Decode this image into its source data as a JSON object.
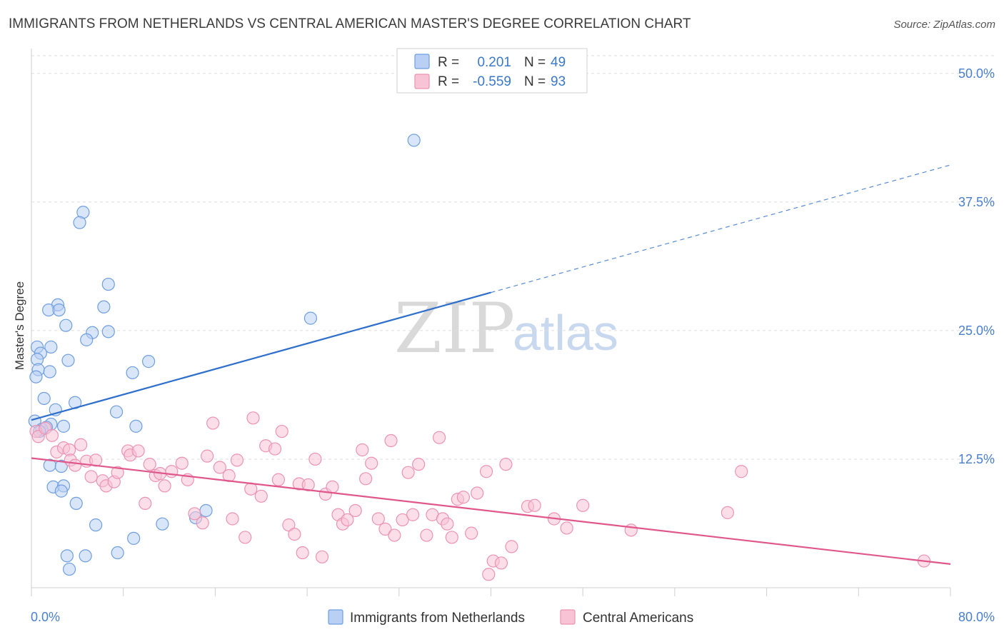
{
  "chart_data": {
    "type": "scatter",
    "title": "IMMIGRANTS FROM NETHERLANDS VS CENTRAL AMERICAN MASTER'S DEGREE CORRELATION CHART",
    "source": "Source: ZipAtlas.com",
    "ylabel": "Master's Degree",
    "xlim": [
      0,
      80
    ],
    "ylim": [
      0,
      52
    ],
    "x_tick_labels": [
      "0.0%",
      "80.0%"
    ],
    "y_ticks": [
      12.5,
      25.0,
      37.5,
      50.0
    ],
    "y_tick_labels": [
      "12.5%",
      "25.0%",
      "37.5%",
      "50.0%"
    ],
    "grid": true,
    "legend_position": "top-center",
    "watermark": {
      "zip": "ZIP",
      "atlas": "atlas"
    },
    "stats_legend": {
      "r_label": "R =",
      "n_label": "N =",
      "rows": [
        {
          "r": "0.201",
          "n": "49"
        },
        {
          "r": "-0.559",
          "n": "93"
        }
      ]
    },
    "series": [
      {
        "name": "Immigrants from Netherlands",
        "color": "#6f9fe0",
        "fill": "#b9cff3",
        "line_color": "#2f6fcc",
        "trend": {
          "x0": 0,
          "y0": 16.3,
          "x1": 40,
          "y1": 28.7,
          "x_end_dashed": 80,
          "y_end_dashed": 41.1
        },
        "points": [
          [
            33.3,
            43.5
          ],
          [
            4.5,
            36.5
          ],
          [
            4.2,
            35.5
          ],
          [
            6.7,
            29.5
          ],
          [
            2.3,
            27.5
          ],
          [
            1.5,
            27.0
          ],
          [
            2.4,
            27.0
          ],
          [
            6.3,
            27.3
          ],
          [
            3.0,
            25.5
          ],
          [
            5.3,
            24.8
          ],
          [
            6.7,
            24.9
          ],
          [
            4.8,
            24.1
          ],
          [
            24.3,
            26.2
          ],
          [
            0.5,
            23.4
          ],
          [
            1.7,
            23.4
          ],
          [
            0.8,
            22.8
          ],
          [
            3.2,
            22.1
          ],
          [
            10.2,
            22.0
          ],
          [
            0.5,
            22.2
          ],
          [
            0.6,
            21.2
          ],
          [
            1.6,
            21.0
          ],
          [
            0.4,
            20.5
          ],
          [
            8.8,
            20.9
          ],
          [
            1.1,
            18.4
          ],
          [
            3.8,
            18.0
          ],
          [
            2.1,
            17.3
          ],
          [
            7.4,
            17.1
          ],
          [
            0.3,
            16.2
          ],
          [
            1.7,
            15.9
          ],
          [
            2.8,
            15.7
          ],
          [
            0.9,
            15.4
          ],
          [
            9.1,
            15.7
          ],
          [
            1.3,
            15.6
          ],
          [
            0.7,
            15.2
          ],
          [
            1.6,
            11.9
          ],
          [
            2.6,
            11.8
          ],
          [
            1.9,
            9.8
          ],
          [
            2.8,
            9.9
          ],
          [
            2.6,
            9.4
          ],
          [
            3.9,
            8.2
          ],
          [
            15.2,
            7.5
          ],
          [
            11.4,
            6.2
          ],
          [
            14.3,
            6.8
          ],
          [
            5.6,
            6.1
          ],
          [
            8.9,
            4.8
          ],
          [
            7.5,
            3.4
          ],
          [
            3.1,
            3.1
          ],
          [
            4.7,
            3.1
          ],
          [
            3.3,
            1.8
          ]
        ]
      },
      {
        "name": "Central Americans",
        "color": "#ec93b3",
        "fill": "#f8c3d5",
        "line_color": "#e0578b",
        "trend": {
          "x0": 0,
          "y0": 12.6,
          "x1": 80,
          "y1": 2.3
        },
        "points": [
          [
            0.4,
            15.2
          ],
          [
            0.6,
            14.7
          ],
          [
            1.2,
            15.5
          ],
          [
            1.8,
            14.8
          ],
          [
            2.2,
            13.2
          ],
          [
            2.8,
            13.6
          ],
          [
            3.3,
            13.4
          ],
          [
            4.3,
            13.9
          ],
          [
            3.4,
            12.4
          ],
          [
            3.8,
            11.9
          ],
          [
            4.8,
            12.3
          ],
          [
            5.2,
            10.8
          ],
          [
            5.6,
            12.4
          ],
          [
            6.2,
            10.4
          ],
          [
            6.5,
            9.9
          ],
          [
            7.2,
            10.3
          ],
          [
            7.5,
            11.2
          ],
          [
            8.4,
            13.3
          ],
          [
            8.6,
            12.9
          ],
          [
            9.3,
            13.3
          ],
          [
            9.9,
            8.2
          ],
          [
            10.3,
            12.0
          ],
          [
            10.8,
            10.9
          ],
          [
            11.2,
            11.1
          ],
          [
            11.6,
            9.9
          ],
          [
            12.2,
            11.3
          ],
          [
            13.1,
            12.1
          ],
          [
            13.6,
            10.5
          ],
          [
            14.2,
            7.2
          ],
          [
            14.9,
            6.3
          ],
          [
            15.3,
            12.8
          ],
          [
            15.8,
            16.0
          ],
          [
            16.4,
            11.7
          ],
          [
            17.2,
            10.9
          ],
          [
            17.5,
            6.7
          ],
          [
            17.9,
            12.4
          ],
          [
            18.6,
            4.9
          ],
          [
            19.1,
            9.6
          ],
          [
            19.3,
            16.5
          ],
          [
            20.0,
            8.9
          ],
          [
            20.4,
            13.8
          ],
          [
            21.2,
            13.5
          ],
          [
            21.5,
            10.5
          ],
          [
            21.8,
            15.2
          ],
          [
            22.4,
            6.1
          ],
          [
            22.9,
            5.2
          ],
          [
            23.3,
            10.1
          ],
          [
            23.6,
            3.4
          ],
          [
            24.1,
            10.0
          ],
          [
            24.7,
            12.5
          ],
          [
            25.3,
            3.0
          ],
          [
            25.6,
            9.1
          ],
          [
            26.2,
            9.8
          ],
          [
            26.7,
            7.1
          ],
          [
            27.1,
            6.2
          ],
          [
            27.5,
            6.6
          ],
          [
            28.2,
            7.5
          ],
          [
            28.8,
            13.4
          ],
          [
            29.1,
            10.6
          ],
          [
            29.6,
            12.1
          ],
          [
            30.2,
            6.7
          ],
          [
            30.8,
            5.7
          ],
          [
            31.3,
            14.3
          ],
          [
            31.6,
            5.1
          ],
          [
            32.3,
            6.6
          ],
          [
            32.8,
            11.2
          ],
          [
            33.2,
            7.1
          ],
          [
            33.7,
            12.0
          ],
          [
            34.4,
            5.1
          ],
          [
            34.9,
            7.1
          ],
          [
            35.5,
            14.6
          ],
          [
            35.8,
            6.7
          ],
          [
            36.2,
            6.2
          ],
          [
            36.6,
            4.9
          ],
          [
            37.1,
            8.6
          ],
          [
            37.6,
            8.8
          ],
          [
            38.3,
            5.3
          ],
          [
            38.8,
            9.2
          ],
          [
            39.6,
            11.3
          ],
          [
            39.8,
            1.3
          ],
          [
            40.2,
            2.6
          ],
          [
            40.9,
            2.4
          ],
          [
            41.3,
            12.0
          ],
          [
            41.8,
            4.0
          ],
          [
            43.2,
            7.9
          ],
          [
            43.8,
            8.0
          ],
          [
            45.5,
            6.7
          ],
          [
            46.6,
            5.8
          ],
          [
            48.0,
            8.0
          ],
          [
            52.2,
            5.6
          ],
          [
            60.6,
            7.3
          ],
          [
            61.8,
            11.3
          ],
          [
            77.7,
            2.6
          ]
        ]
      }
    ]
  }
}
